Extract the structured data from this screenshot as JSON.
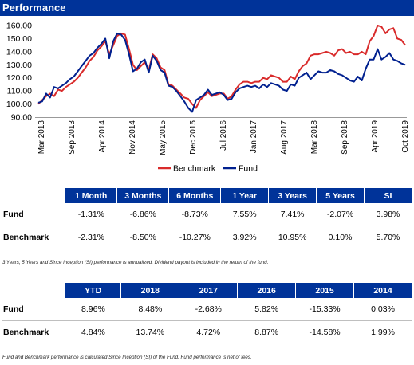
{
  "header": {
    "title": "Performance"
  },
  "chart_data": {
    "type": "line",
    "title": "",
    "xlabel": "",
    "ylabel": "",
    "ylim": [
      90,
      160
    ],
    "yticks": [
      "90.00",
      "100.00",
      "110.00",
      "120.00",
      "130.00",
      "140.00",
      "150.00",
      "160.00"
    ],
    "xticks": [
      "Mar 2013",
      "Sep 2013",
      "Apr 2014",
      "Nov 2014",
      "May 2015",
      "Dec 2015",
      "Jul 2016",
      "Jan 2017",
      "Aug 2017",
      "Mar 2018",
      "Sep 2018",
      "Apr 2019",
      "Oct 2019"
    ],
    "legend": {
      "placement": "bottom-center"
    },
    "colors": {
      "Benchmark": "#d92b2b",
      "Fund": "#00208f"
    },
    "series": [
      {
        "name": "Benchmark",
        "values": [
          100,
          103,
          106,
          108,
          106,
          111,
          110,
          113,
          115,
          117,
          120,
          124,
          128,
          133,
          136,
          141,
          144,
          148,
          138,
          145,
          152,
          154,
          153,
          142,
          130,
          126,
          129,
          132,
          126,
          138,
          135,
          128,
          126,
          115,
          114,
          111,
          108,
          105,
          104,
          100,
          97,
          103,
          106,
          109,
          106,
          107,
          108,
          108,
          104,
          106,
          111,
          115,
          117,
          117,
          116,
          117,
          117,
          120,
          119,
          122,
          121,
          120,
          117,
          117,
          121,
          119,
          125,
          129,
          131,
          137,
          138,
          138,
          139,
          140,
          139,
          137,
          141,
          142,
          139,
          140,
          138,
          138,
          140,
          138,
          148,
          152,
          160,
          159,
          154,
          157,
          158,
          150,
          149,
          145
        ]
      },
      {
        "name": "Fund",
        "values": [
          101,
          102,
          108,
          105,
          113,
          112,
          114,
          116,
          119,
          121,
          125,
          129,
          133,
          137,
          139,
          143,
          146,
          150,
          135,
          148,
          154,
          153,
          149,
          138,
          125,
          127,
          132,
          134,
          124,
          137,
          133,
          126,
          124,
          114,
          113,
          110,
          106,
          102,
          97,
          94,
          103,
          105,
          107,
          111,
          107,
          108,
          109,
          107,
          103,
          104,
          109,
          112,
          113,
          114,
          113,
          114,
          112,
          115,
          113,
          116,
          115,
          114,
          111,
          110,
          115,
          114,
          120,
          122,
          124,
          119,
          122,
          125,
          124,
          124,
          126,
          125,
          123,
          122,
          120,
          118,
          117,
          121,
          118,
          127,
          134,
          134,
          142,
          134,
          136,
          139,
          134,
          133,
          131,
          130
        ]
      }
    ]
  },
  "table1": {
    "headers": [
      "1 Month",
      "3 Months",
      "6 Months",
      "1 Year",
      "3 Years",
      "5 Years",
      "SI"
    ],
    "rows": [
      {
        "label": "Fund",
        "values": [
          "-1.31%",
          "-6.86%",
          "-8.73%",
          "7.55%",
          "7.41%",
          "-2.07%",
          "3.98%"
        ]
      },
      {
        "label": "Benchmark",
        "values": [
          "-2.31%",
          "-8.50%",
          "-10.27%",
          "3.92%",
          "10.95%",
          "0.10%",
          "5.70%"
        ]
      }
    ]
  },
  "note1": "3 Years, 5 Years and Since Inception (SI) performance is annualized. Dividend payout is included in the return of the fund.",
  "table2": {
    "headers": [
      "YTD",
      "2018",
      "2017",
      "2016",
      "2015",
      "2014"
    ],
    "rows": [
      {
        "label": "Fund",
        "values": [
          "8.96%",
          "8.48%",
          "-2.68%",
          "5.82%",
          "-15.33%",
          "0.03%"
        ]
      },
      {
        "label": "Benchmark",
        "values": [
          "4.84%",
          "13.74%",
          "4.72%",
          "8.87%",
          "-14.58%",
          "1.99%"
        ]
      }
    ]
  },
  "note2": "Fund and Benchmark performance is calculated Since Inception (SI) of the Fund. Fund performance is net of fees."
}
